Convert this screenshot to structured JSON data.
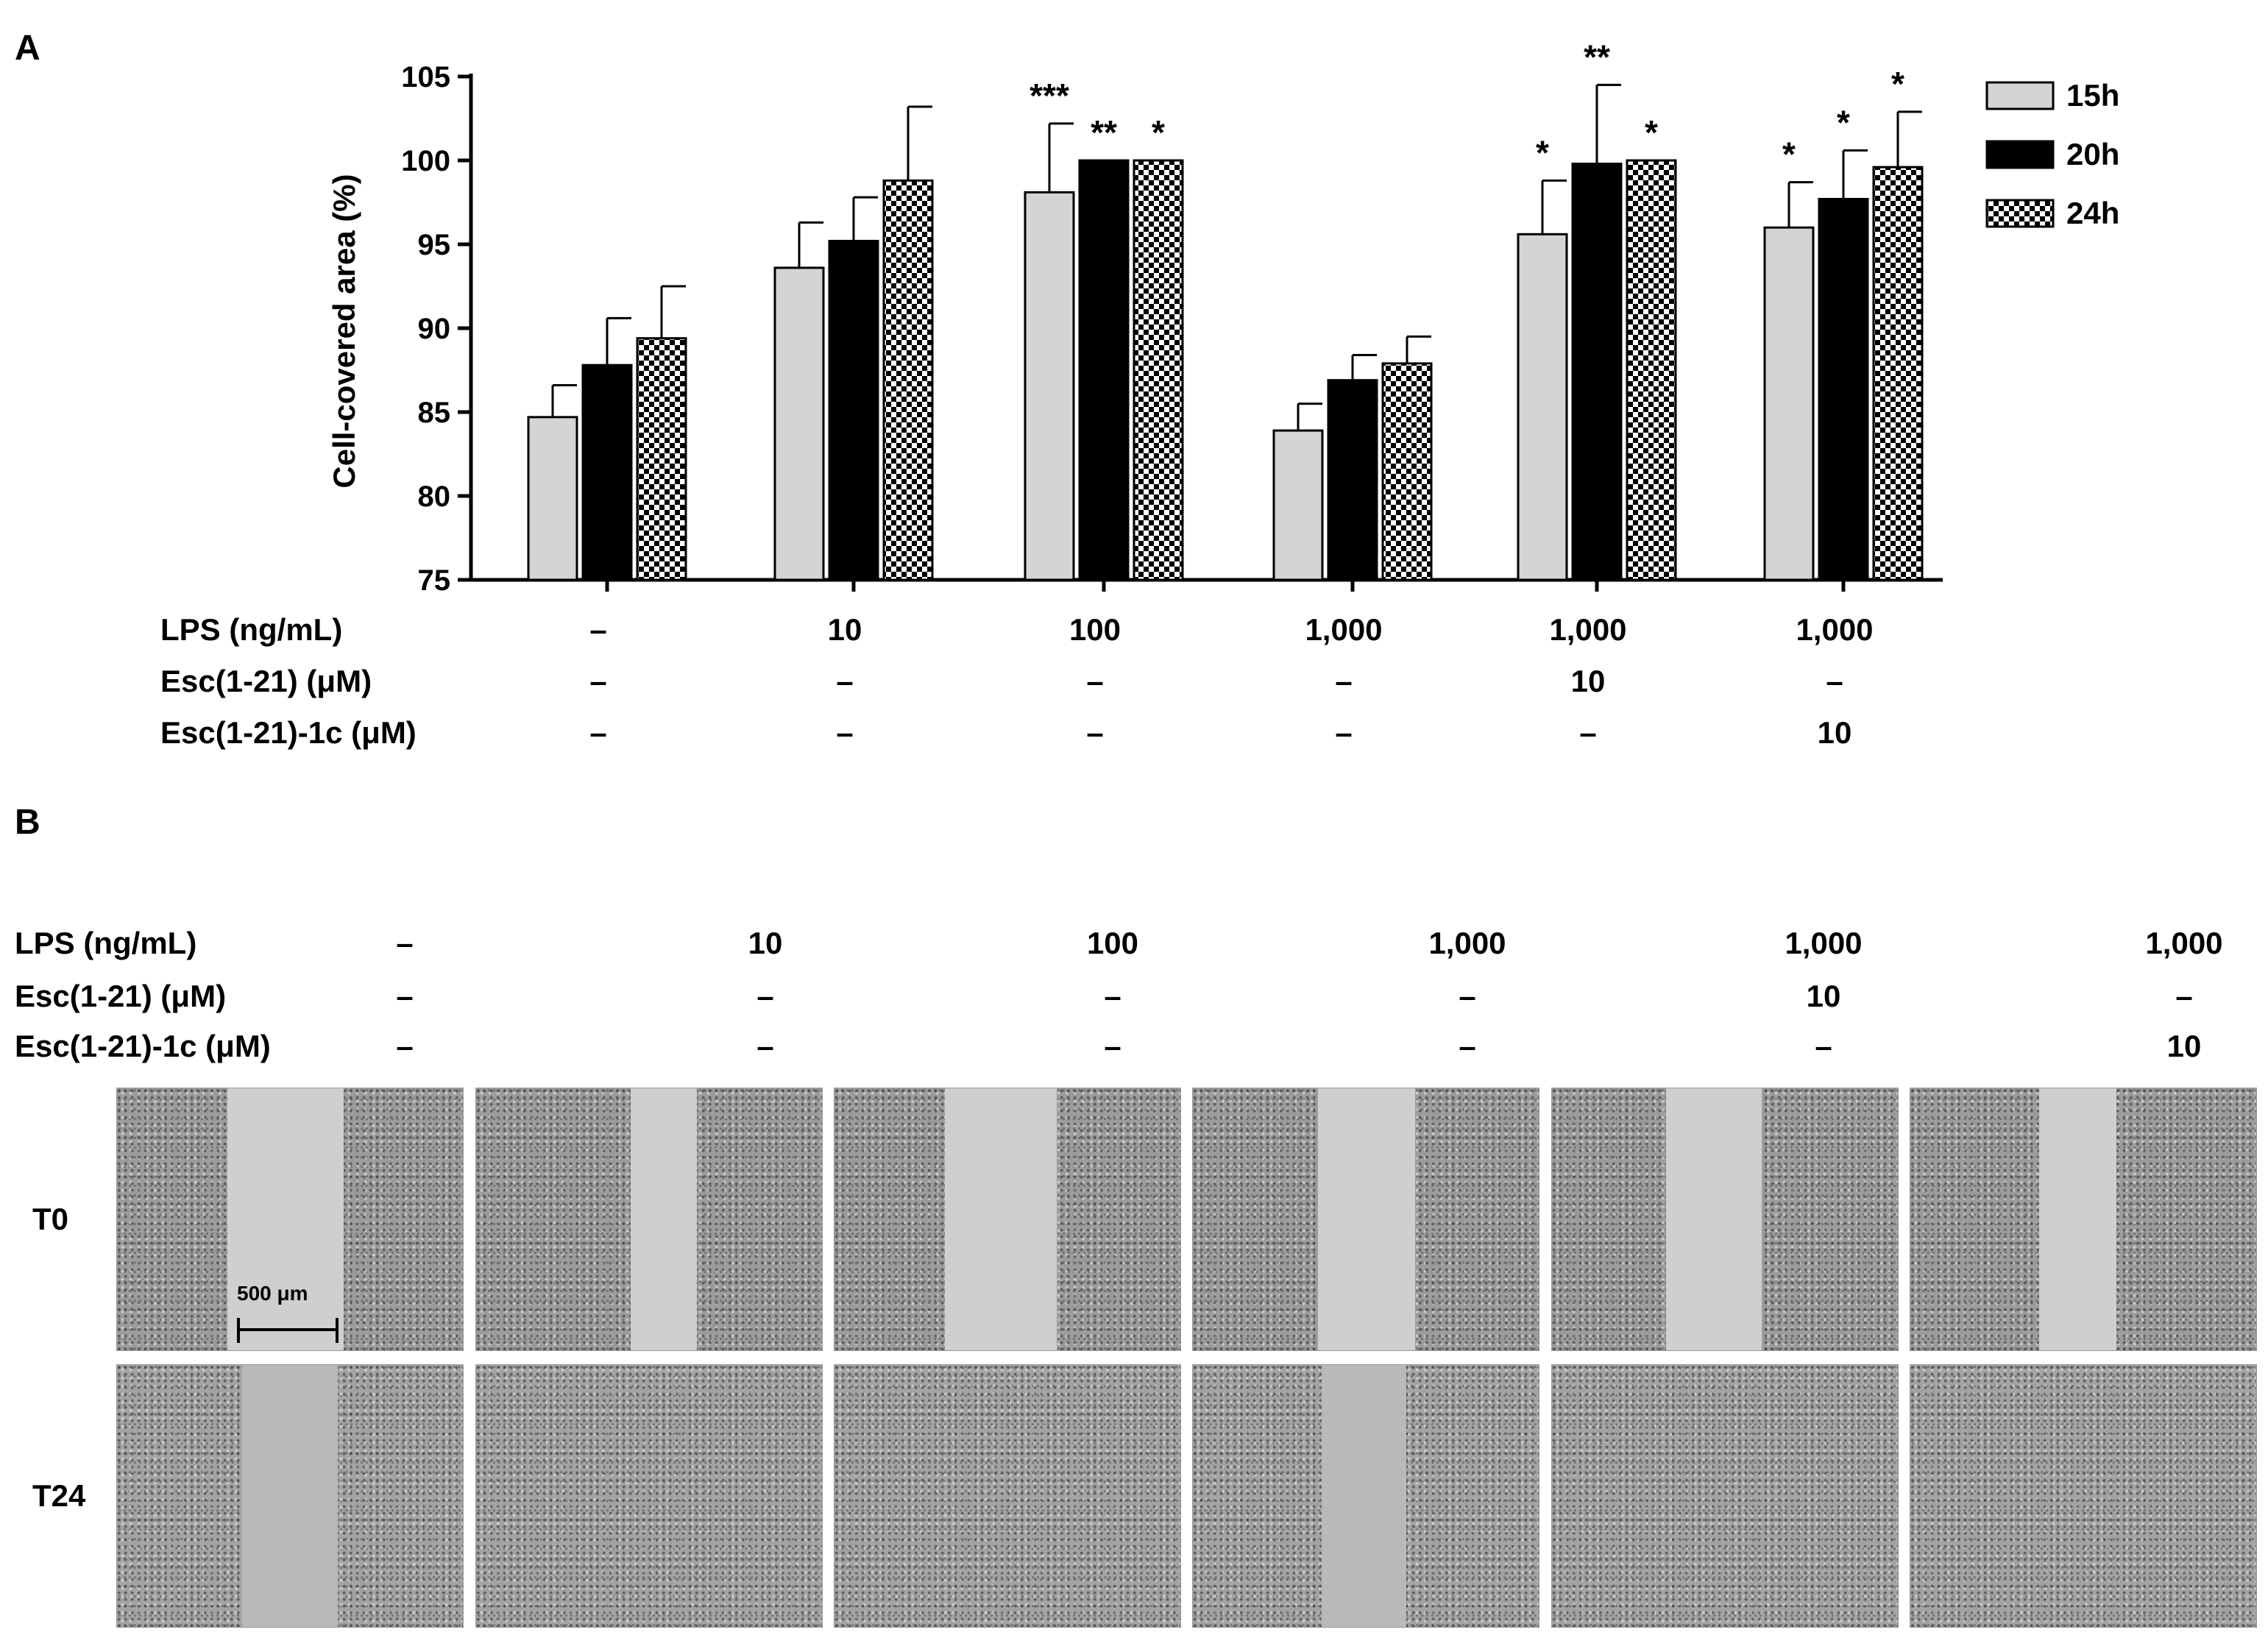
{
  "panel_a_label": "A",
  "panel_b_label": "B",
  "chart_data": {
    "type": "bar",
    "title": "",
    "ylabel": "Cell-covered area (%)",
    "xlabel": "",
    "ylim": [
      75,
      105
    ],
    "yticks": [
      75,
      80,
      85,
      90,
      95,
      100,
      105
    ],
    "grid": false,
    "legend_position": "top-right",
    "categories": [
      "–",
      "10",
      "100",
      "1,000",
      "1,000",
      "1,000"
    ],
    "condition_rows": [
      {
        "label": "LPS (ng/mL)",
        "values": [
          "–",
          "10",
          "100",
          "1,000",
          "1,000",
          "1,000"
        ]
      },
      {
        "label": "Esc(1-21) (μM)",
        "values": [
          "–",
          "–",
          "–",
          "–",
          "10",
          "–"
        ]
      },
      {
        "label": "Esc(1-21)-1c (μM)",
        "values": [
          "–",
          "–",
          "–",
          "–",
          "–",
          "10"
        ]
      }
    ],
    "series": [
      {
        "name": "15h",
        "color": "#d4d4d4",
        "pattern": "solid",
        "values": [
          84.7,
          93.6,
          98.1,
          83.9,
          95.6,
          96.0
        ],
        "errors": [
          1.9,
          2.7,
          4.1,
          1.6,
          3.2,
          2.7
        ],
        "significance": [
          "",
          "",
          "***",
          "",
          "*",
          "*"
        ]
      },
      {
        "name": "20h",
        "color": "#000000",
        "pattern": "solid",
        "values": [
          87.8,
          95.2,
          100.0,
          86.9,
          99.8,
          97.7
        ],
        "errors": [
          2.8,
          2.6,
          0,
          1.5,
          4.7,
          2.9
        ],
        "significance": [
          "",
          "",
          "**",
          "",
          "**",
          "*"
        ]
      },
      {
        "name": "24h",
        "color": "#000000",
        "pattern": "checker",
        "values": [
          89.4,
          98.8,
          100.0,
          87.9,
          100.0,
          99.6
        ],
        "errors": [
          3.1,
          4.4,
          0,
          1.6,
          0,
          3.3
        ],
        "significance": [
          "",
          "",
          "*",
          "",
          "*",
          "*"
        ]
      }
    ]
  },
  "panel_b": {
    "rows": [
      {
        "label": "LPS (ng/mL)",
        "values": [
          "–",
          "10",
          "100",
          "1,000",
          "1,000",
          "1,000"
        ]
      },
      {
        "label": "Esc(1-21) (μM)",
        "values": [
          "–",
          "–",
          "–",
          "–",
          "10",
          "–"
        ]
      },
      {
        "label": "Esc(1-21)-1c (μM)",
        "values": [
          "–",
          "–",
          "–",
          "–",
          "–",
          "10"
        ]
      }
    ],
    "timepoints": [
      "T0",
      "T24"
    ],
    "scale_bar": "500 μm"
  }
}
